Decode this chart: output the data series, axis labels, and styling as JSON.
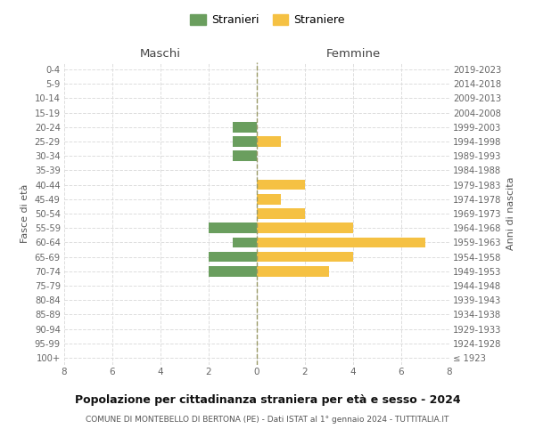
{
  "age_groups": [
    "100+",
    "95-99",
    "90-94",
    "85-89",
    "80-84",
    "75-79",
    "70-74",
    "65-69",
    "60-64",
    "55-59",
    "50-54",
    "45-49",
    "40-44",
    "35-39",
    "30-34",
    "25-29",
    "20-24",
    "15-19",
    "10-14",
    "5-9",
    "0-4"
  ],
  "birth_years": [
    "≤ 1923",
    "1924-1928",
    "1929-1933",
    "1934-1938",
    "1939-1943",
    "1944-1948",
    "1949-1953",
    "1954-1958",
    "1959-1963",
    "1964-1968",
    "1969-1973",
    "1974-1978",
    "1979-1983",
    "1984-1988",
    "1989-1993",
    "1994-1998",
    "1999-2003",
    "2004-2008",
    "2009-2013",
    "2014-2018",
    "2019-2023"
  ],
  "maschi": [
    0,
    0,
    0,
    0,
    0,
    0,
    2,
    2,
    1,
    2,
    0,
    0,
    0,
    0,
    1,
    1,
    1,
    0,
    0,
    0,
    0
  ],
  "femmine": [
    0,
    0,
    0,
    0,
    0,
    0,
    3,
    4,
    7,
    4,
    2,
    1,
    2,
    0,
    0,
    1,
    0,
    0,
    0,
    0,
    0
  ],
  "color_maschi": "#6a9e5e",
  "color_femmine": "#f5c143",
  "label_stranieri": "Stranieri",
  "label_straniere": "Straniere",
  "xlabel_left": "Maschi",
  "xlabel_right": "Femmine",
  "ylabel_left": "Fasce di età",
  "ylabel_right": "Anni di nascita",
  "xlim": 8,
  "background_color": "#ffffff",
  "grid_color": "#dddddd",
  "center_line_color": "#999966",
  "title_main": "Popolazione per cittadinanza straniera per età e sesso - 2024",
  "title_sub": "COMUNE DI MONTEBELLO DI BERTONA (PE) - Dati ISTAT al 1° gennaio 2024 - TUTTITALIA.IT"
}
